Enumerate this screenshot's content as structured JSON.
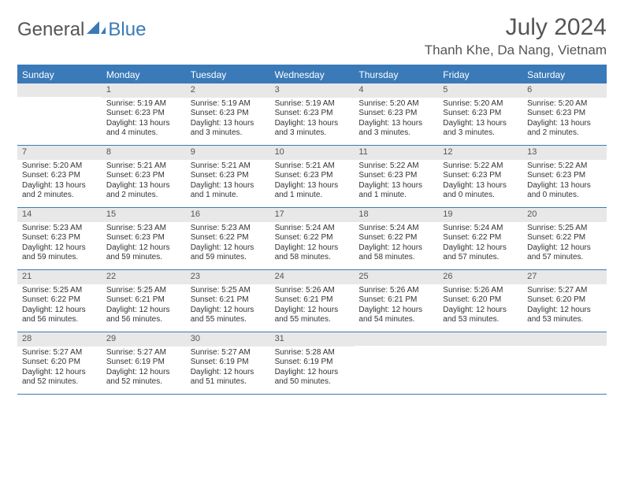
{
  "brand": {
    "part1": "General",
    "part2": "Blue"
  },
  "title": "July 2024",
  "location": "Thanh Khe, Da Nang, Vietnam",
  "colors": {
    "accent": "#3a7ab8",
    "daybar": "#e8e8e8",
    "text": "#333333",
    "muted": "#555555",
    "bg": "#ffffff"
  },
  "weekdays": [
    "Sunday",
    "Monday",
    "Tuesday",
    "Wednesday",
    "Thursday",
    "Friday",
    "Saturday"
  ],
  "weeks": [
    [
      {
        "n": "",
        "sun": "",
        "set": "",
        "day": ""
      },
      {
        "n": "1",
        "sun": "Sunrise: 5:19 AM",
        "set": "Sunset: 6:23 PM",
        "day": "Daylight: 13 hours and 4 minutes."
      },
      {
        "n": "2",
        "sun": "Sunrise: 5:19 AM",
        "set": "Sunset: 6:23 PM",
        "day": "Daylight: 13 hours and 3 minutes."
      },
      {
        "n": "3",
        "sun": "Sunrise: 5:19 AM",
        "set": "Sunset: 6:23 PM",
        "day": "Daylight: 13 hours and 3 minutes."
      },
      {
        "n": "4",
        "sun": "Sunrise: 5:20 AM",
        "set": "Sunset: 6:23 PM",
        "day": "Daylight: 13 hours and 3 minutes."
      },
      {
        "n": "5",
        "sun": "Sunrise: 5:20 AM",
        "set": "Sunset: 6:23 PM",
        "day": "Daylight: 13 hours and 3 minutes."
      },
      {
        "n": "6",
        "sun": "Sunrise: 5:20 AM",
        "set": "Sunset: 6:23 PM",
        "day": "Daylight: 13 hours and 2 minutes."
      }
    ],
    [
      {
        "n": "7",
        "sun": "Sunrise: 5:20 AM",
        "set": "Sunset: 6:23 PM",
        "day": "Daylight: 13 hours and 2 minutes."
      },
      {
        "n": "8",
        "sun": "Sunrise: 5:21 AM",
        "set": "Sunset: 6:23 PM",
        "day": "Daylight: 13 hours and 2 minutes."
      },
      {
        "n": "9",
        "sun": "Sunrise: 5:21 AM",
        "set": "Sunset: 6:23 PM",
        "day": "Daylight: 13 hours and 1 minute."
      },
      {
        "n": "10",
        "sun": "Sunrise: 5:21 AM",
        "set": "Sunset: 6:23 PM",
        "day": "Daylight: 13 hours and 1 minute."
      },
      {
        "n": "11",
        "sun": "Sunrise: 5:22 AM",
        "set": "Sunset: 6:23 PM",
        "day": "Daylight: 13 hours and 1 minute."
      },
      {
        "n": "12",
        "sun": "Sunrise: 5:22 AM",
        "set": "Sunset: 6:23 PM",
        "day": "Daylight: 13 hours and 0 minutes."
      },
      {
        "n": "13",
        "sun": "Sunrise: 5:22 AM",
        "set": "Sunset: 6:23 PM",
        "day": "Daylight: 13 hours and 0 minutes."
      }
    ],
    [
      {
        "n": "14",
        "sun": "Sunrise: 5:23 AM",
        "set": "Sunset: 6:23 PM",
        "day": "Daylight: 12 hours and 59 minutes."
      },
      {
        "n": "15",
        "sun": "Sunrise: 5:23 AM",
        "set": "Sunset: 6:23 PM",
        "day": "Daylight: 12 hours and 59 minutes."
      },
      {
        "n": "16",
        "sun": "Sunrise: 5:23 AM",
        "set": "Sunset: 6:22 PM",
        "day": "Daylight: 12 hours and 59 minutes."
      },
      {
        "n": "17",
        "sun": "Sunrise: 5:24 AM",
        "set": "Sunset: 6:22 PM",
        "day": "Daylight: 12 hours and 58 minutes."
      },
      {
        "n": "18",
        "sun": "Sunrise: 5:24 AM",
        "set": "Sunset: 6:22 PM",
        "day": "Daylight: 12 hours and 58 minutes."
      },
      {
        "n": "19",
        "sun": "Sunrise: 5:24 AM",
        "set": "Sunset: 6:22 PM",
        "day": "Daylight: 12 hours and 57 minutes."
      },
      {
        "n": "20",
        "sun": "Sunrise: 5:25 AM",
        "set": "Sunset: 6:22 PM",
        "day": "Daylight: 12 hours and 57 minutes."
      }
    ],
    [
      {
        "n": "21",
        "sun": "Sunrise: 5:25 AM",
        "set": "Sunset: 6:22 PM",
        "day": "Daylight: 12 hours and 56 minutes."
      },
      {
        "n": "22",
        "sun": "Sunrise: 5:25 AM",
        "set": "Sunset: 6:21 PM",
        "day": "Daylight: 12 hours and 56 minutes."
      },
      {
        "n": "23",
        "sun": "Sunrise: 5:25 AM",
        "set": "Sunset: 6:21 PM",
        "day": "Daylight: 12 hours and 55 minutes."
      },
      {
        "n": "24",
        "sun": "Sunrise: 5:26 AM",
        "set": "Sunset: 6:21 PM",
        "day": "Daylight: 12 hours and 55 minutes."
      },
      {
        "n": "25",
        "sun": "Sunrise: 5:26 AM",
        "set": "Sunset: 6:21 PM",
        "day": "Daylight: 12 hours and 54 minutes."
      },
      {
        "n": "26",
        "sun": "Sunrise: 5:26 AM",
        "set": "Sunset: 6:20 PM",
        "day": "Daylight: 12 hours and 53 minutes."
      },
      {
        "n": "27",
        "sun": "Sunrise: 5:27 AM",
        "set": "Sunset: 6:20 PM",
        "day": "Daylight: 12 hours and 53 minutes."
      }
    ],
    [
      {
        "n": "28",
        "sun": "Sunrise: 5:27 AM",
        "set": "Sunset: 6:20 PM",
        "day": "Daylight: 12 hours and 52 minutes."
      },
      {
        "n": "29",
        "sun": "Sunrise: 5:27 AM",
        "set": "Sunset: 6:19 PM",
        "day": "Daylight: 12 hours and 52 minutes."
      },
      {
        "n": "30",
        "sun": "Sunrise: 5:27 AM",
        "set": "Sunset: 6:19 PM",
        "day": "Daylight: 12 hours and 51 minutes."
      },
      {
        "n": "31",
        "sun": "Sunrise: 5:28 AM",
        "set": "Sunset: 6:19 PM",
        "day": "Daylight: 12 hours and 50 minutes."
      },
      {
        "n": "",
        "sun": "",
        "set": "",
        "day": ""
      },
      {
        "n": "",
        "sun": "",
        "set": "",
        "day": ""
      },
      {
        "n": "",
        "sun": "",
        "set": "",
        "day": ""
      }
    ]
  ]
}
